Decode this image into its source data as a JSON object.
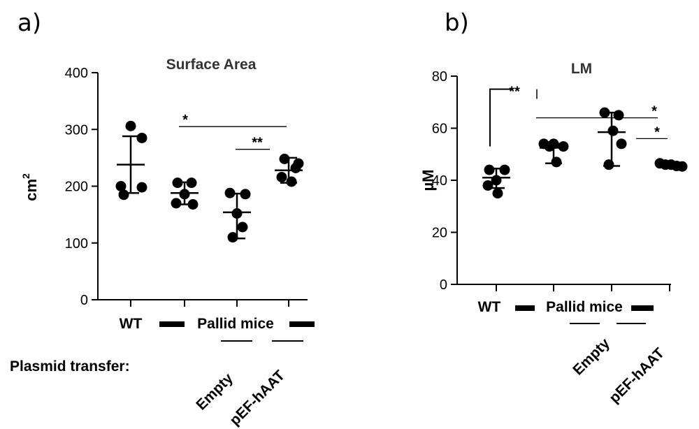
{
  "chart_data": [
    {
      "type": "scatter",
      "panel_label": "a)",
      "title": "Surface Area",
      "ylabel": "cm",
      "ylabel_superscript": "2",
      "ylim": [
        0,
        400
      ],
      "yticks": [
        0,
        100,
        200,
        300,
        400
      ],
      "groups": [
        {
          "category": "WT",
          "points": [
            306,
            285,
            200,
            198,
            185
          ],
          "mean": 238,
          "sd_upper": 288,
          "sd_lower": 188
        },
        {
          "category": "Pallid mice (no label)",
          "points": [
            206,
            206,
            186,
            170,
            168
          ],
          "mean": 188,
          "sd_upper": 207,
          "sd_lower": 168
        },
        {
          "category": "Empty",
          "points": [
            188,
            186,
            152,
            128,
            110
          ],
          "mean": 154,
          "sd_upper": 187,
          "sd_lower": 108
        },
        {
          "category": "pEF-hAAT",
          "points": [
            248,
            240,
            232,
            216,
            208
          ],
          "mean": 228,
          "sd_upper": 250,
          "sd_lower": 206
        }
      ],
      "significance": [
        {
          "label": "*",
          "between": [
            "Pallid mice",
            "pEF-hAAT"
          ],
          "y": 305
        },
        {
          "label": "**",
          "between": [
            "Empty",
            "pEF-hAAT"
          ],
          "y": 265
        }
      ],
      "xaxis_text": {
        "wt": "WT",
        "pallid": "Pallid mice",
        "plasmid": "Plasmid transfer:",
        "empty": "Empty",
        "hAAT": "pEF-hAAT"
      }
    },
    {
      "type": "scatter",
      "panel_label": "b)",
      "title": "LM",
      "ylabel": "µM",
      "ylim": [
        0,
        80
      ],
      "yticks": [
        0,
        20,
        40,
        60,
        80
      ],
      "groups": [
        {
          "category": "WT",
          "points": [
            44,
            44,
            40,
            38,
            35
          ],
          "mean": 41,
          "sd_upper": 44.5,
          "sd_lower": 37
        },
        {
          "category": "Pallid mice (no label)",
          "points": [
            54,
            54,
            53,
            53,
            47
          ],
          "mean": 52.5,
          "sd_upper": 54,
          "sd_lower": 46.5
        },
        {
          "category": "Empty",
          "points": [
            66,
            65,
            59,
            54,
            46
          ],
          "mean": 58.5,
          "sd_upper": 66,
          "sd_lower": 45.5
        },
        {
          "category": "pEF-hAAT",
          "points": [
            46.5,
            46,
            46,
            45.5,
            45.3
          ],
          "mean": 45.8,
          "sd_upper": 46.5,
          "sd_lower": 45.2
        }
      ],
      "significance": [
        {
          "label": "**",
          "between": [
            "WT",
            "Pallid mice"
          ],
          "y": 75
        },
        {
          "label": "*",
          "between": [
            "Pallid mice",
            "pEF-hAAT"
          ],
          "y": 64
        },
        {
          "label": "*",
          "between": [
            "Empty",
            "pEF-hAAT"
          ],
          "y": 56
        }
      ],
      "xaxis_text": {
        "wt": "WT",
        "pallid": "Pallid mice",
        "empty": "Empty",
        "hAAT": "pEF-hAAT"
      }
    }
  ]
}
